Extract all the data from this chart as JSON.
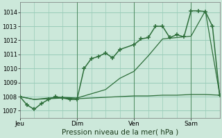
{
  "background_color": "#cce8da",
  "grid_color": "#99ccb8",
  "line_color": "#2d6e3a",
  "marker_color": "#2d6e3a",
  "title": "Pression niveau de la mer( hPa )",
  "xlim": [
    0,
    84
  ],
  "ylim": [
    1006.5,
    1014.7
  ],
  "yticks": [
    1007,
    1008,
    1009,
    1010,
    1011,
    1012,
    1013,
    1014
  ],
  "day_ticks": [
    0,
    24,
    48,
    72
  ],
  "day_labels": [
    "Jeu",
    "Dim",
    "Ven",
    "Sam"
  ],
  "series1_x": [
    0,
    3,
    6,
    9,
    12,
    15,
    18,
    21,
    24,
    27,
    30,
    33,
    36,
    39,
    42,
    48,
    51,
    54,
    57,
    60,
    63,
    66,
    69,
    72,
    75,
    78,
    81,
    84
  ],
  "series1_y": [
    1008.0,
    1007.4,
    1007.1,
    1007.5,
    1007.8,
    1008.0,
    1007.9,
    1007.8,
    1007.8,
    1010.0,
    1010.7,
    1010.85,
    1011.1,
    1010.75,
    1011.35,
    1011.7,
    1012.1,
    1012.2,
    1013.0,
    1013.0,
    1012.2,
    1012.4,
    1012.25,
    1014.1,
    1014.1,
    1014.05,
    1013.0,
    1008.1
  ],
  "series2_x": [
    0,
    6,
    12,
    18,
    24,
    30,
    36,
    42,
    48,
    54,
    60,
    66,
    72,
    78,
    84
  ],
  "series2_y": [
    1008.0,
    1007.8,
    1007.85,
    1007.9,
    1007.85,
    1007.9,
    1007.95,
    1008.0,
    1008.05,
    1008.05,
    1008.1,
    1008.1,
    1008.15,
    1008.15,
    1008.1
  ],
  "series3_x": [
    0,
    6,
    12,
    18,
    24,
    30,
    36,
    42,
    48,
    54,
    60,
    66,
    72,
    78,
    84
  ],
  "series3_y": [
    1008.0,
    1007.8,
    1007.9,
    1007.95,
    1007.9,
    1008.2,
    1008.5,
    1009.3,
    1009.8,
    1010.9,
    1012.1,
    1012.2,
    1012.3,
    1014.1,
    1008.2
  ],
  "vlines": [
    24,
    48,
    72
  ]
}
